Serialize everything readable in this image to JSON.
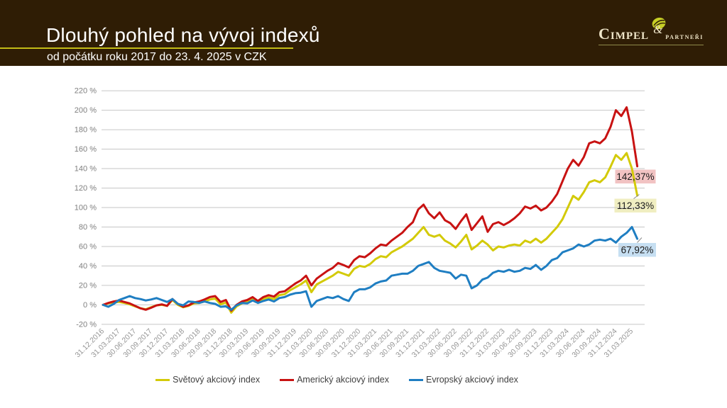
{
  "header": {
    "title": "Dlouhý pohled na vývoj indexů",
    "subtitle": "od počátku roku 2017 do 23. 4. 2025 v CZK",
    "background_color": "#2f1d05",
    "underline_color": "#c3bb16"
  },
  "logo": {
    "name": "Cimpel",
    "ampersand": "&",
    "suffix": "partneři",
    "text_color": "#efe5c9",
    "leaf_color": "#c6ce26",
    "rule_color": "#8f8a4a"
  },
  "chart_data": {
    "type": "line",
    "title": "",
    "ylim": [
      -20,
      220
    ],
    "y_ticks": [
      220,
      200,
      180,
      160,
      140,
      120,
      100,
      80,
      60,
      40,
      20,
      0,
      -20
    ],
    "y_tick_suffix": " %",
    "grid_color": "#c6c6c6",
    "y_tick_color": "#7f7f7f",
    "x_tick_color": "#969696",
    "legend_position": "bottom",
    "x_tick_labels": [
      "31.12.2016",
      "31.03.2017",
      "30.06.2017",
      "30.09.2017",
      "30.12.2017",
      "31.03.2018",
      "30.06.2018",
      "29.09.2018",
      "31.12.2018",
      "30.03.2019",
      "29.06.2019",
      "30.09.2019",
      "31.12.2019",
      "31.03.2020",
      "30.06.2020",
      "30.09.2020",
      "31.12.2020",
      "31.03.2021",
      "30.06.2021",
      "30.09.2021",
      "31.12.2021",
      "31.03.2022",
      "30.06.2022",
      "30.09.2022",
      "31.12.2022",
      "31.03.2023",
      "30.06.2023",
      "30.09.2023",
      "31.12.2023",
      "31.03.2024",
      "30.06.2024",
      "30.09.2024",
      "31.12.2024",
      "31.03.2025"
    ],
    "points_per_tick_interval": 3,
    "series": [
      {
        "name": "Světový akciový index",
        "color": "#d3ca08",
        "end_label": "112,33%",
        "end_label_bg": "#f0eec1",
        "values": [
          0,
          1.5,
          2.5,
          3,
          2,
          0.5,
          -1.5,
          -3.5,
          -4.5,
          -2.5,
          -0.5,
          0,
          -1,
          5,
          0,
          -2.5,
          -1,
          1.5,
          2,
          3.5,
          5.5,
          6.5,
          0.5,
          2.5,
          -8,
          -1.5,
          1.5,
          3,
          6,
          2,
          6,
          7.5,
          6,
          10,
          11,
          15,
          18,
          21,
          25,
          13,
          21,
          24,
          27,
          30,
          34,
          32,
          30,
          37,
          40,
          39,
          42,
          47,
          50,
          49,
          54,
          57,
          60,
          64,
          68,
          74,
          80,
          72,
          70,
          72,
          66,
          63,
          59,
          65,
          72,
          57,
          61,
          66,
          62,
          56,
          60,
          59,
          61,
          62,
          61,
          66,
          64,
          68,
          64,
          68,
          74,
          80,
          88,
          100,
          112,
          108,
          116,
          126,
          128,
          126,
          131,
          142,
          154,
          149,
          156,
          140,
          112.33
        ]
      },
      {
        "name": "Americký akciový index",
        "color": "#c81212",
        "end_label": "142,37%",
        "end_label_bg": "#f2c3c3",
        "values": [
          0,
          2,
          3.5,
          4.5,
          3,
          1.5,
          -1,
          -3.5,
          -5,
          -3,
          -0.5,
          0.5,
          -1,
          6,
          1,
          -2,
          -0.5,
          2.5,
          3.5,
          5.5,
          8,
          9,
          3,
          5,
          -6,
          0,
          3.5,
          5,
          8,
          4,
          8,
          10,
          8.5,
          13,
          14,
          18,
          22,
          25,
          30,
          20,
          27,
          31,
          35,
          38,
          43,
          41,
          38.5,
          46,
          50,
          49,
          53,
          58,
          62,
          61,
          66,
          70,
          74,
          80,
          85,
          98,
          103,
          94,
          89,
          95,
          87,
          84,
          78,
          86,
          93,
          77,
          84,
          91,
          75,
          83,
          85,
          82,
          85,
          89,
          94,
          101,
          99,
          102,
          97,
          100,
          106,
          114,
          127,
          140,
          149,
          143,
          152,
          166,
          168,
          166,
          171,
          183,
          200,
          194,
          203,
          178,
          142.37
        ]
      },
      {
        "name": "Evropský akciový index",
        "color": "#1f7ec2",
        "end_label": "67,92%",
        "end_label_bg": "#c6dff2",
        "values": [
          0,
          -2,
          1,
          5,
          7,
          9,
          7,
          6,
          4.5,
          5.5,
          7,
          5,
          3,
          6,
          1,
          -0.5,
          3.5,
          3,
          2,
          3.5,
          2,
          1,
          -2,
          -1.5,
          -5,
          -0.5,
          2,
          1.5,
          4.5,
          2,
          4,
          5.5,
          3.5,
          7,
          8,
          10.5,
          12,
          12.5,
          14,
          -2,
          4,
          6,
          8,
          7,
          9,
          6,
          4,
          13,
          16,
          16,
          18,
          22,
          24,
          25,
          30,
          31,
          32,
          32,
          35,
          40,
          42,
          44,
          38,
          35,
          34,
          33,
          27,
          31,
          30,
          17,
          20,
          26,
          28,
          33,
          35,
          34,
          36,
          34,
          35,
          38,
          37,
          41,
          36,
          40,
          46,
          48,
          54,
          56,
          58,
          62,
          60,
          62,
          66,
          67,
          66,
          68,
          64,
          70,
          74,
          80,
          67.92
        ]
      }
    ]
  }
}
